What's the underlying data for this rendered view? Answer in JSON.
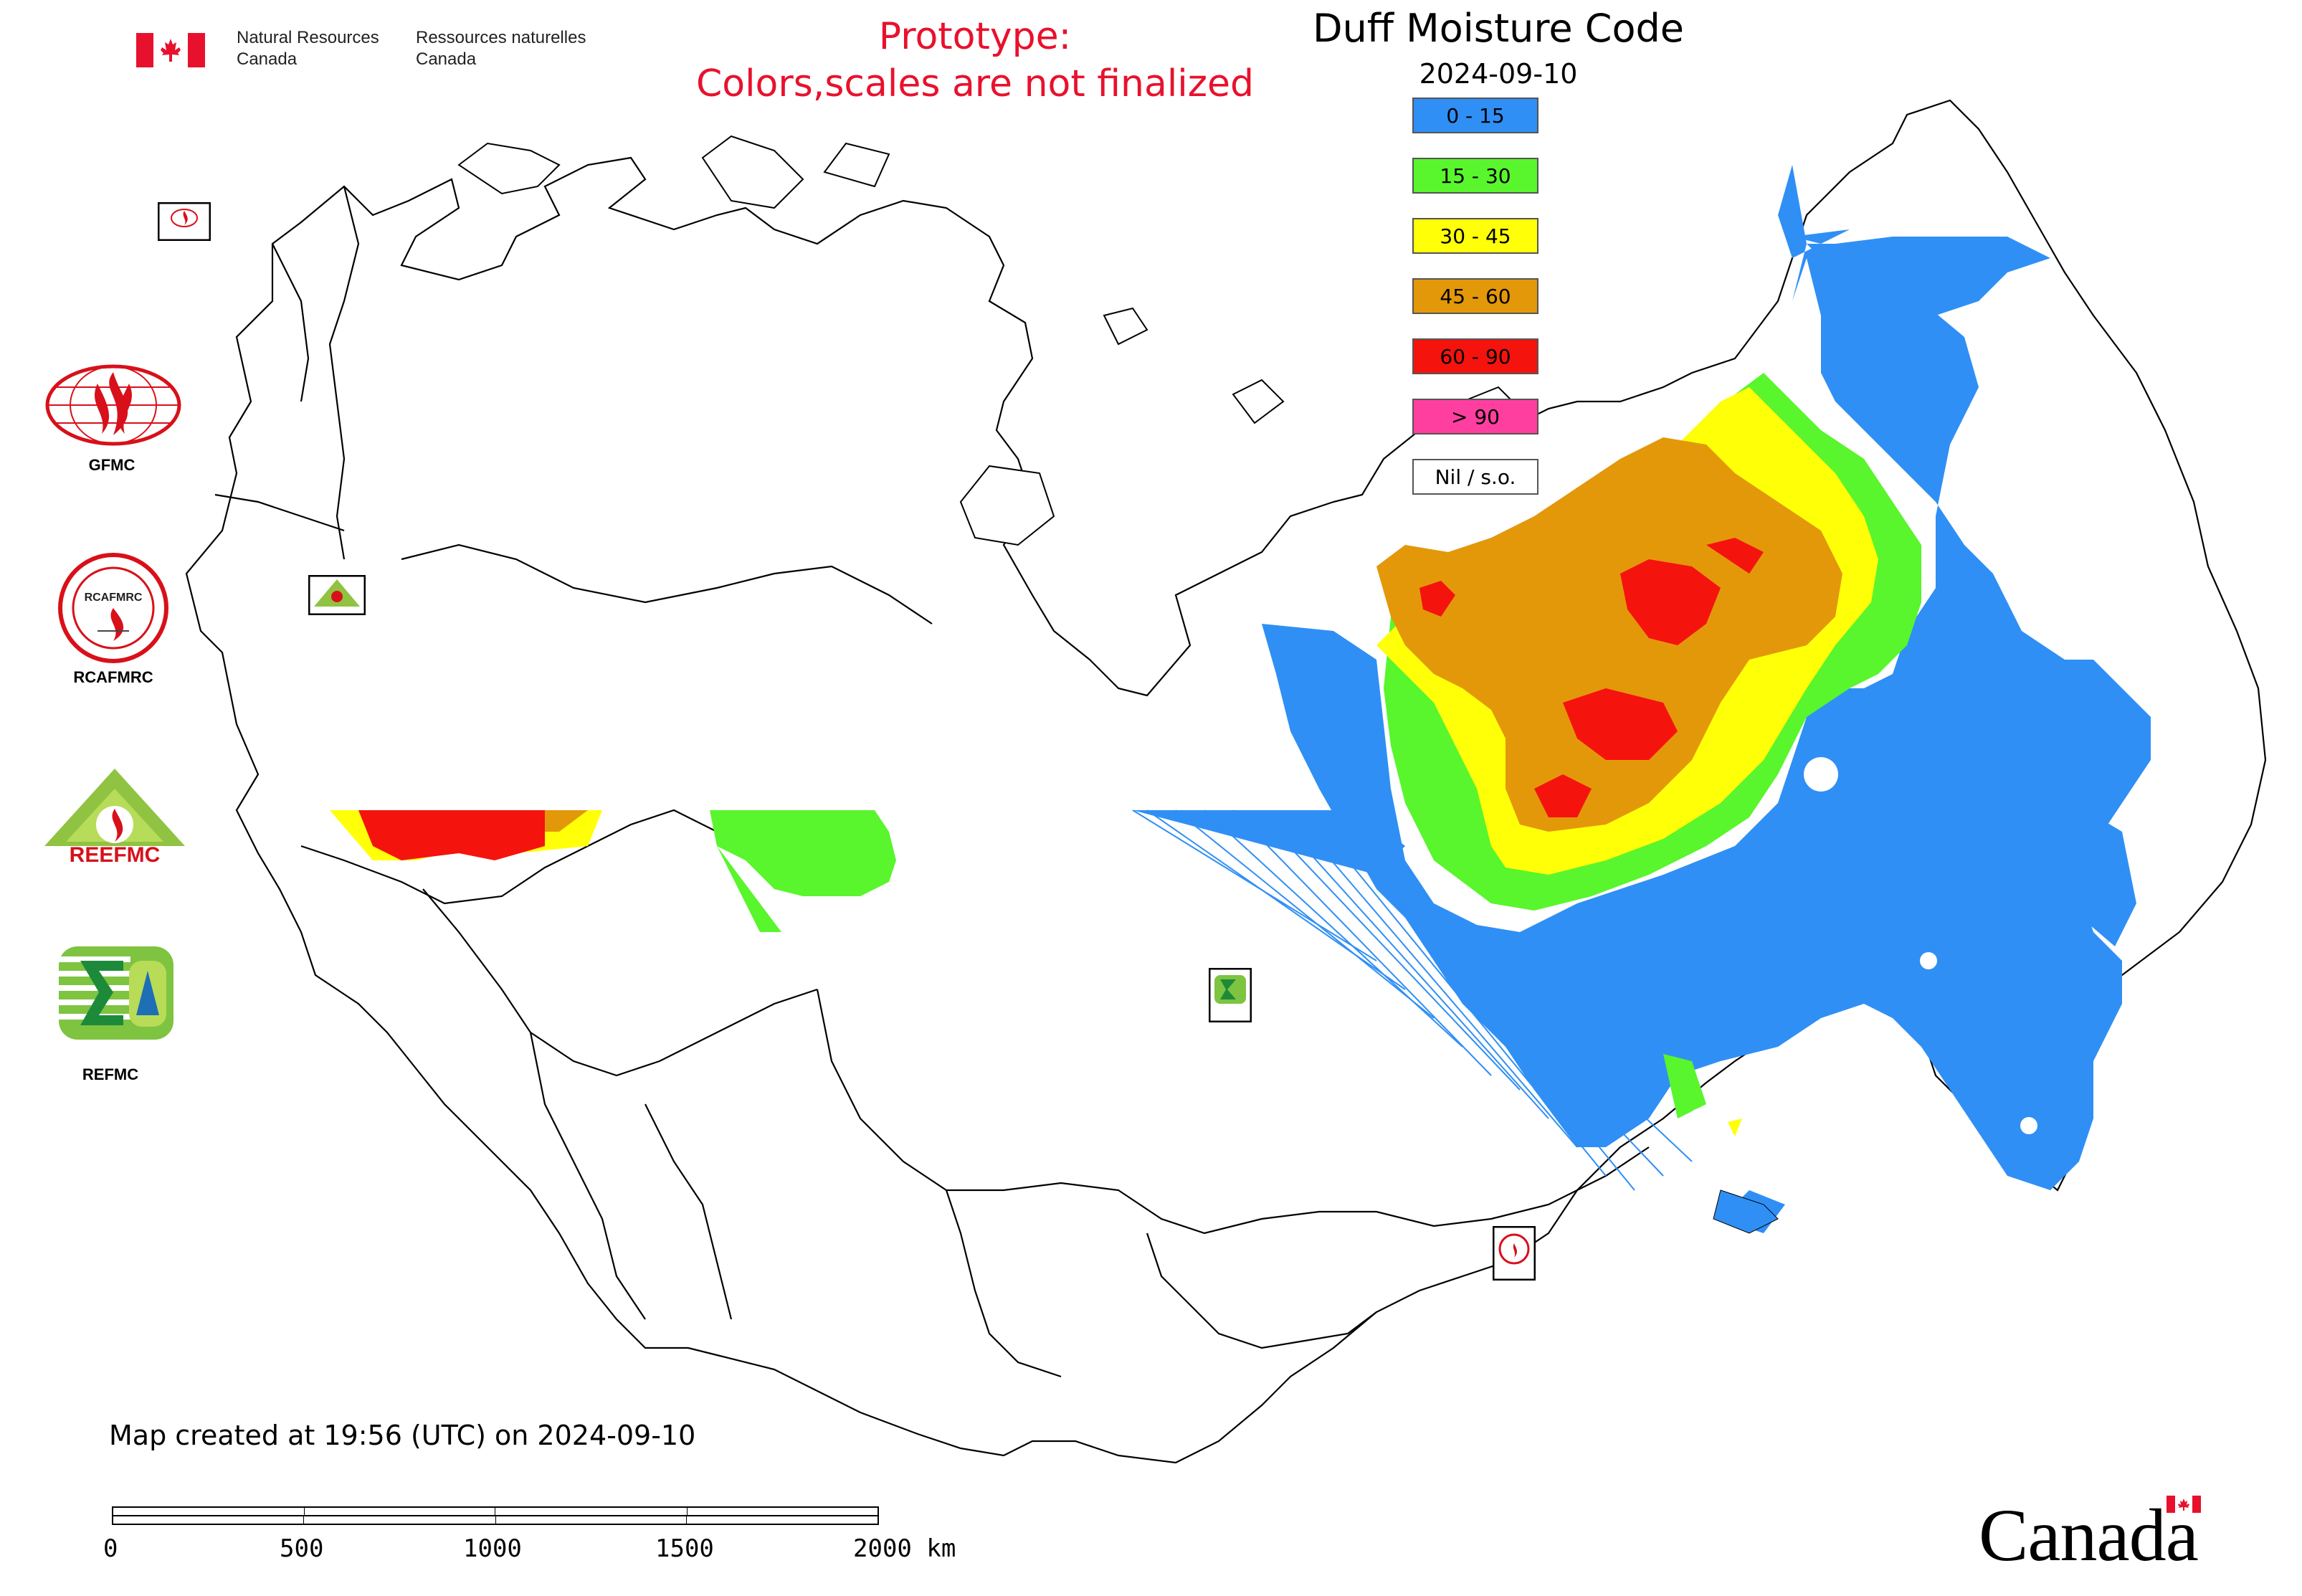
{
  "agency": {
    "name_en": [
      "Natural Resources",
      "Canada"
    ],
    "name_fr": [
      "Ressources naturelles",
      "Canada"
    ]
  },
  "prototype_notice": [
    "Prototype:",
    "Colors,scales are not finalized"
  ],
  "map": {
    "title": "Duff Moisture Code",
    "date": "2024-09-10"
  },
  "legend": {
    "items": [
      {
        "label": "0 - 15",
        "color": "#2f8ff5"
      },
      {
        "label": "15 - 30",
        "color": "#59f52d"
      },
      {
        "label": "30 - 45",
        "color": "#ffff08"
      },
      {
        "label": "45 - 60",
        "color": "#e3980a"
      },
      {
        "label": "60 - 90",
        "color": "#f5130d"
      },
      {
        "label": "> 90",
        "color": "#ff3fa0"
      },
      {
        "label": "Nil / s.o.",
        "color": "#ffffff"
      }
    ]
  },
  "logos": {
    "gfmc_label": "GFMC",
    "rcafmrc_label": "RCAFMRC",
    "reefmc_label": "REEFMC",
    "refmc_label": "REFMC",
    "reefmc_text": "REEFMC",
    "rcafmrc_text": "RCAFMRC"
  },
  "footer": {
    "created": "Map created at 19:56 (UTC) on 2024-09-10",
    "scale_ticks": [
      "0",
      "500",
      "1000",
      "1500",
      "2000 km"
    ],
    "wordmark": "Canada"
  },
  "colors": {
    "boundary": "#000000",
    "canada_red": "#e8112d"
  }
}
